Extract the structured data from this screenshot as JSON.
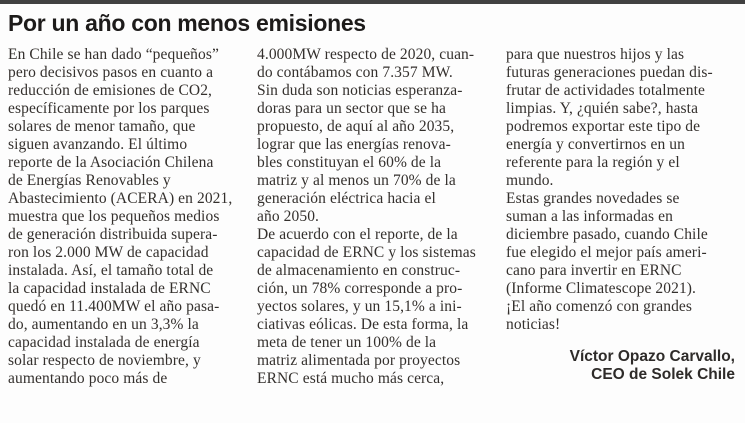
{
  "article": {
    "headline": "Por un año con menos emisiones",
    "columns": [
      {
        "text": "En Chile se han dado “pequeños”\npero decisivos pasos en cuanto a\nreducción de emisiones de CO2,\nespecíficamente por los parques\nsolares de menor tamaño, que\nsiguen avanzando. El último\nreporte de la Asociación Chilena\nde Energías Renovables y\nAbastecimiento (ACERA) en 2021,\nmuestra que los pequeños medios\nde generación distribuida supera-\nron los 2.000 MW de capacidad\ninstalada. Así, el tamaño total de\nla capacidad instalada de ERNC\nquedó en 11.400MW el año pasa-\ndo, aumentando en un 3,3% la\ncapacidad instalada de energía\nsolar respecto de noviembre, y\naumentando poco más de"
      },
      {
        "text": "4.000MW respecto de 2020, cuan-\ndo contábamos con 7.357 MW.\nSin duda son noticias esperanza-\ndoras para un sector que se ha\npropuesto, de aquí al año 2035,\nlograr que las energías renova-\nbles constituyan el 60% de la\nmatriz y al menos un 70% de la\ngeneración eléctrica hacia el\naño 2050.\nDe acuerdo con el reporte, de la\ncapacidad de ERNC y los sistemas\nde almacenamiento en construc-\nción, un 78% corresponde a pro-\nyectos solares, y un 15,1% a ini-\nciativas eólicas. De esta forma, la\nmeta de tener un 100% de la\nmatriz alimentada por proyectos\nERNC está mucho más cerca,"
      },
      {
        "text": "para que nuestros hijos y las\nfuturas generaciones puedan dis-\nfrutar de actividades totalmente\nlimpias. Y, ¿quién sabe?, hasta\npodremos exportar este tipo de\nenergía y convertirnos en un\nreferente para la región y el\nmundo.\nEstas grandes novedades se\nsuman a las informadas en\ndiciembre pasado, cuando Chile\nfue elegido el mejor país ameri-\ncano para invertir en ERNC\n(Informe Climatescope 2021).\n¡El año comenzó con grandes\nnoticias!"
      }
    ],
    "signature": {
      "name": "Víctor Opazo Carvallo,",
      "title": "CEO de Solek Chile"
    }
  },
  "colors": {
    "background": "#fdfdfd",
    "top_rule": "#414141",
    "headline_text": "#1d1b1a",
    "body_text": "#34302d"
  }
}
